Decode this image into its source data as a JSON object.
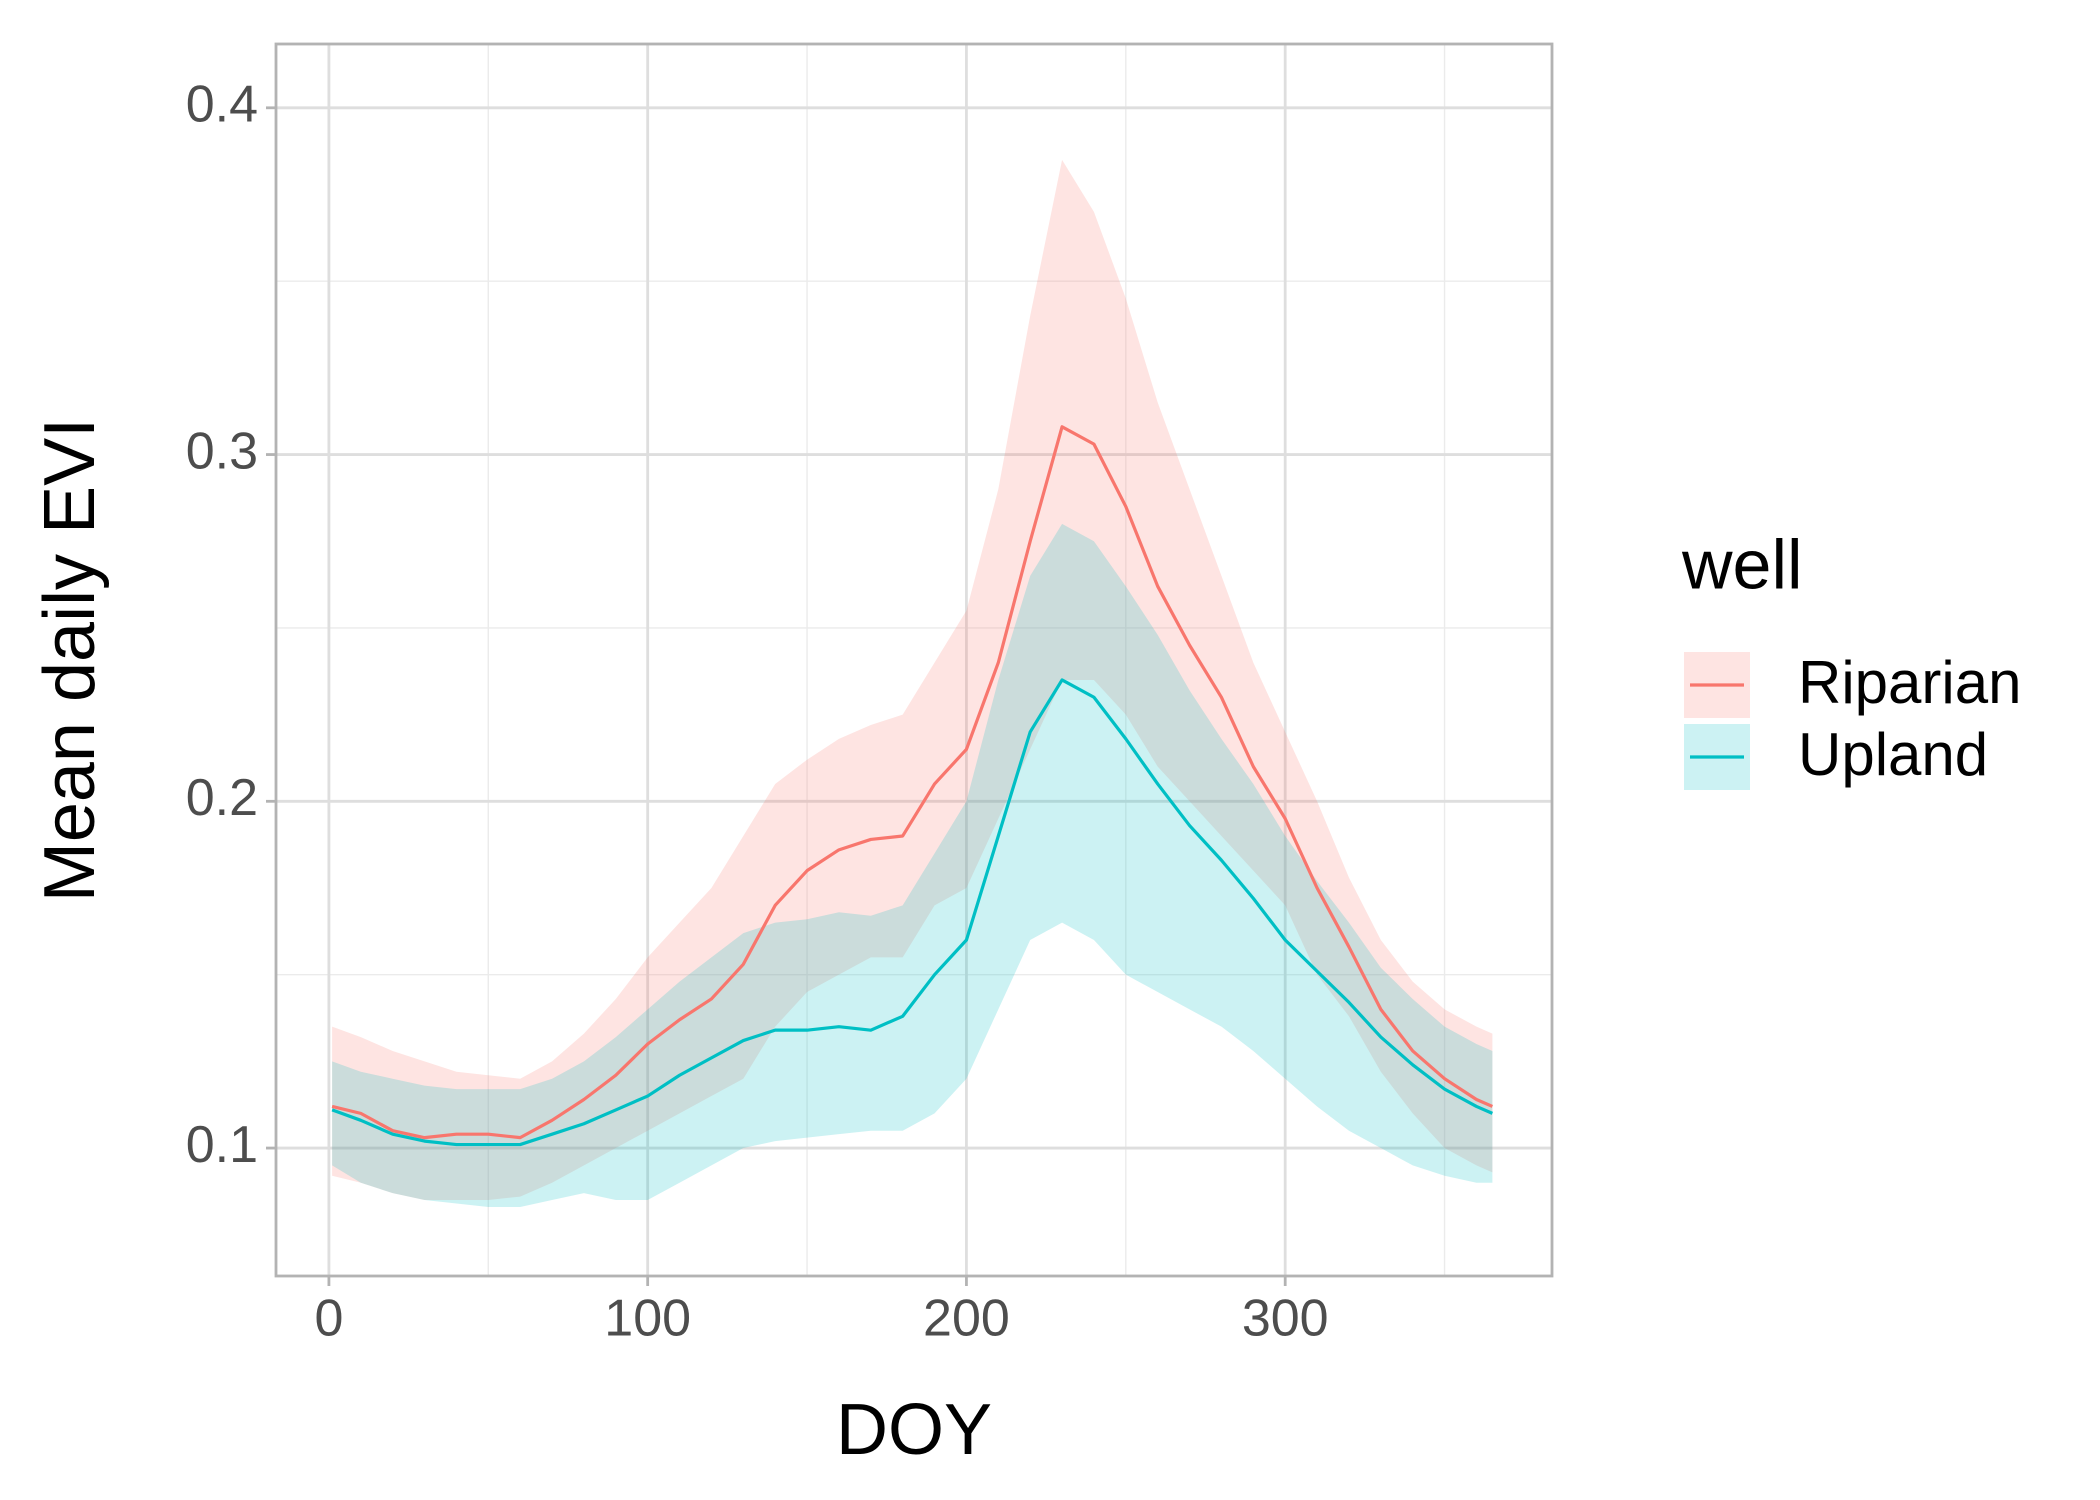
{
  "chart_data": {
    "type": "line",
    "x_label": "DOY",
    "y_label": "Mean daily EVI",
    "legend_title": "well",
    "legend_position": "right",
    "grid": true,
    "xlim": [
      -16.6,
      383.7
    ],
    "ylim": [
      0.0631,
      0.4184
    ],
    "xticks": [
      0,
      100,
      200,
      300
    ],
    "yticks": [
      0.1,
      0.2,
      0.3,
      0.4
    ],
    "xminor": [
      50,
      150,
      250,
      350
    ],
    "yminor": [
      0.15,
      0.25,
      0.35
    ],
    "ribbon_opacity": 0.2,
    "x": [
      1,
      10,
      20,
      30,
      40,
      50,
      60,
      70,
      80,
      90,
      100,
      110,
      120,
      130,
      140,
      150,
      160,
      170,
      180,
      190,
      200,
      210,
      220,
      230,
      240,
      250,
      260,
      270,
      280,
      290,
      300,
      310,
      320,
      330,
      340,
      350,
      360,
      365
    ],
    "series": [
      {
        "name": "Riparian",
        "color": "#F8766D",
        "values": [
          0.112,
          0.11,
          0.105,
          0.103,
          0.104,
          0.104,
          0.103,
          0.108,
          0.114,
          0.121,
          0.13,
          0.137,
          0.143,
          0.153,
          0.17,
          0.18,
          0.186,
          0.189,
          0.19,
          0.205,
          0.215,
          0.24,
          0.275,
          0.308,
          0.303,
          0.285,
          0.262,
          0.245,
          0.23,
          0.21,
          0.195,
          0.175,
          0.158,
          0.14,
          0.128,
          0.12,
          0.114,
          0.112
        ],
        "upper": [
          0.135,
          0.132,
          0.128,
          0.125,
          0.122,
          0.121,
          0.12,
          0.125,
          0.133,
          0.143,
          0.155,
          0.165,
          0.175,
          0.19,
          0.205,
          0.212,
          0.218,
          0.222,
          0.225,
          0.24,
          0.255,
          0.29,
          0.34,
          0.385,
          0.37,
          0.345,
          0.315,
          0.29,
          0.265,
          0.24,
          0.22,
          0.2,
          0.178,
          0.16,
          0.148,
          0.14,
          0.135,
          0.133
        ],
        "lower": [
          0.092,
          0.09,
          0.087,
          0.085,
          0.085,
          0.085,
          0.086,
          0.09,
          0.095,
          0.1,
          0.105,
          0.11,
          0.115,
          0.12,
          0.135,
          0.145,
          0.15,
          0.155,
          0.155,
          0.17,
          0.175,
          0.195,
          0.215,
          0.235,
          0.235,
          0.225,
          0.21,
          0.2,
          0.19,
          0.18,
          0.17,
          0.15,
          0.138,
          0.122,
          0.11,
          0.1,
          0.095,
          0.093
        ]
      },
      {
        "name": "Upland",
        "color": "#00BFC4",
        "values": [
          0.111,
          0.108,
          0.104,
          0.102,
          0.101,
          0.101,
          0.101,
          0.104,
          0.107,
          0.111,
          0.115,
          0.121,
          0.126,
          0.131,
          0.134,
          0.134,
          0.135,
          0.134,
          0.138,
          0.15,
          0.16,
          0.19,
          0.22,
          0.235,
          0.23,
          0.218,
          0.205,
          0.193,
          0.183,
          0.172,
          0.16,
          0.151,
          0.142,
          0.132,
          0.124,
          0.117,
          0.112,
          0.11
        ],
        "upper": [
          0.125,
          0.122,
          0.12,
          0.118,
          0.117,
          0.117,
          0.117,
          0.12,
          0.125,
          0.132,
          0.14,
          0.148,
          0.155,
          0.162,
          0.165,
          0.166,
          0.168,
          0.167,
          0.17,
          0.185,
          0.2,
          0.235,
          0.265,
          0.28,
          0.275,
          0.262,
          0.248,
          0.232,
          0.218,
          0.205,
          0.19,
          0.177,
          0.165,
          0.152,
          0.143,
          0.135,
          0.13,
          0.128
        ],
        "lower": [
          0.095,
          0.09,
          0.087,
          0.085,
          0.084,
          0.083,
          0.083,
          0.085,
          0.087,
          0.085,
          0.085,
          0.09,
          0.095,
          0.1,
          0.102,
          0.103,
          0.104,
          0.105,
          0.105,
          0.11,
          0.12,
          0.14,
          0.16,
          0.165,
          0.16,
          0.15,
          0.145,
          0.14,
          0.135,
          0.128,
          0.12,
          0.112,
          0.105,
          0.1,
          0.095,
          0.092,
          0.09,
          0.09
        ]
      }
    ]
  }
}
